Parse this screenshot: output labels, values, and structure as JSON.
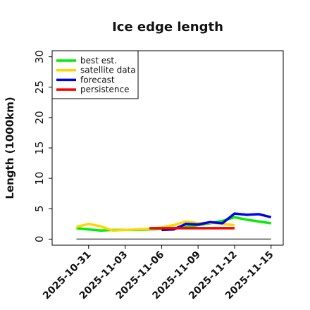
{
  "chart_data": {
    "type": "line",
    "title": "Ice edge length",
    "ylabel": "Length (1000km)",
    "xlabel": "",
    "ylim": [
      -1,
      31
    ],
    "yticks": [
      0,
      5,
      10,
      15,
      20,
      25,
      30
    ],
    "xlim": [
      "2025-10-28",
      "2025-11-16"
    ],
    "xticks": [
      "2025-10-31",
      "2025-11-03",
      "2025-11-06",
      "2025-11-09",
      "2025-11-12",
      "2025-11-15"
    ],
    "highlight_tick": "2025-11-06",
    "highlight_color": "#228b22",
    "legend_position": "upper-left",
    "zero_line": {
      "x": [
        "2025-10-30",
        "2025-11-15"
      ],
      "y": 0,
      "color": "#555555"
    },
    "series": [
      {
        "name": "best est.",
        "color": "#00ee00",
        "x": [
          "2025-10-30",
          "2025-10-31",
          "2025-11-01",
          "2025-11-02",
          "2025-11-03",
          "2025-11-04",
          "2025-11-05",
          "2025-11-06",
          "2025-11-07",
          "2025-11-08",
          "2025-11-09",
          "2025-11-10",
          "2025-11-11",
          "2025-11-12",
          "2025-11-13",
          "2025-11-14",
          "2025-11-15"
        ],
        "y": [
          1.8,
          1.6,
          1.4,
          1.5,
          1.5,
          1.5,
          1.6,
          1.7,
          1.8,
          2.0,
          2.3,
          2.6,
          3.0,
          3.6,
          3.2,
          2.9,
          2.6
        ]
      },
      {
        "name": "satellite data",
        "color": "#ffd700",
        "x": [
          "2025-10-30",
          "2025-10-31",
          "2025-11-01",
          "2025-11-02",
          "2025-11-03",
          "2025-11-04",
          "2025-11-05",
          "2025-11-06",
          "2025-11-07",
          "2025-11-08",
          "2025-11-09",
          "2025-11-10",
          "2025-11-11",
          "2025-11-12"
        ],
        "y": [
          2.0,
          2.5,
          2.1,
          1.4,
          1.5,
          1.6,
          1.7,
          1.9,
          2.3,
          2.9,
          2.6,
          2.7,
          2.5,
          2.3
        ]
      },
      {
        "name": "forecast",
        "color": "#0000ee",
        "x": [
          "2025-11-06",
          "2025-11-07",
          "2025-11-08",
          "2025-11-09",
          "2025-11-10",
          "2025-11-11",
          "2025-11-12",
          "2025-11-13",
          "2025-11-14",
          "2025-11-15"
        ],
        "y": [
          1.5,
          1.6,
          2.5,
          2.4,
          2.8,
          2.6,
          4.2,
          4.0,
          4.1,
          3.6
        ]
      },
      {
        "name": "persistence",
        "color": "#ff0000",
        "x": [
          "2025-11-05",
          "2025-11-12"
        ],
        "y": [
          1.8,
          1.8
        ]
      }
    ]
  }
}
